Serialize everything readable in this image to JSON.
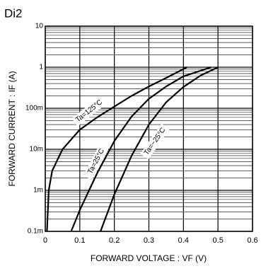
{
  "chart_data": {
    "type": "line",
    "title": "Di2",
    "xlabel": "FORWARD VOLTAGE : VF (V)",
    "ylabel": "FORWARD CURRENT : IF (A)",
    "xlim": [
      0,
      0.6
    ],
    "ylim": [
      0.0001,
      10
    ],
    "ylog": true,
    "grid": true,
    "xticks": [
      0,
      0.1,
      0.2,
      0.3,
      0.4,
      0.5,
      0.6
    ],
    "yticks": [
      10,
      1,
      {
        "value": 0.1,
        "label": "100m"
      },
      {
        "value": 0.01,
        "label": "10m"
      },
      {
        "value": 0.001,
        "label": "1m"
      },
      {
        "value": 0.0001,
        "label": "0.1m"
      }
    ],
    "series": [
      {
        "name": "Ta=125°C",
        "color": "#000000",
        "x": [
          0.005,
          0.01,
          0.02,
          0.05,
          0.1,
          0.15,
          0.2,
          0.25,
          0.3,
          0.35,
          0.41
        ],
        "values": [
          0.0001,
          0.001,
          0.003,
          0.01,
          0.03,
          0.06,
          0.11,
          0.2,
          0.34,
          0.55,
          1
        ]
      },
      {
        "name": "Ta=25°C",
        "color": "#000000",
        "x": [
          0.075,
          0.1,
          0.15,
          0.2,
          0.25,
          0.3,
          0.35,
          0.4,
          0.48
        ],
        "values": [
          0.0001,
          0.00033,
          0.0026,
          0.016,
          0.063,
          0.17,
          0.34,
          0.6,
          1
        ]
      },
      {
        "name": "Ta=−25°C",
        "color": "#000000",
        "x": [
          0.16,
          0.2,
          0.25,
          0.3,
          0.35,
          0.4,
          0.45,
          0.5
        ],
        "values": [
          0.0001,
          0.0008,
          0.007,
          0.04,
          0.14,
          0.33,
          0.63,
          1
        ]
      }
    ]
  }
}
